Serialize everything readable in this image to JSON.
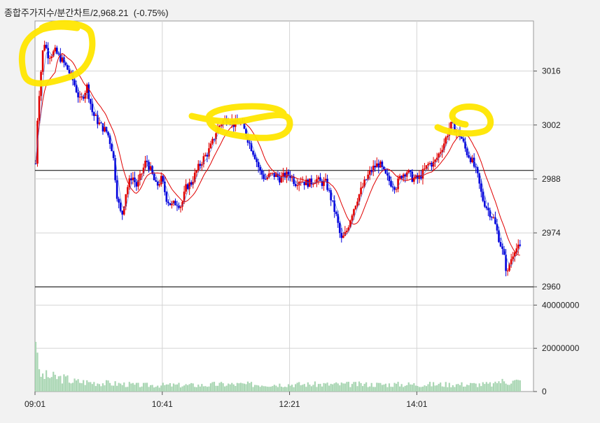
{
  "title": {
    "name": "종합주가지수/분간차트",
    "value": "2,968.21",
    "change": "(-0.75%)"
  },
  "chart_data": [
    {
      "type": "candlestick",
      "name": "price",
      "yticks": [
        3016,
        3002,
        2988,
        2974,
        2960
      ],
      "ylim": [
        2957.5,
        3029
      ],
      "reference_lines": [
        2990.2,
        2960.0
      ],
      "grid": true,
      "xticks": [
        "09:01",
        "10:41",
        "12:21",
        "14:01"
      ],
      "colors": {
        "up": "#e00000",
        "down": "#0000dd",
        "ma": "#e00000"
      },
      "close_path": [
        [
          0,
          2992
        ],
        [
          0.6,
          3006
        ],
        [
          1.5,
          3016
        ],
        [
          2.3,
          3024
        ],
        [
          3.6,
          3020
        ],
        [
          5.5,
          3021
        ],
        [
          7.3,
          3019
        ],
        [
          9.3,
          3016
        ],
        [
          10.8,
          3013
        ],
        [
          12.6,
          3008
        ],
        [
          14.5,
          3012
        ],
        [
          16.1,
          3005
        ],
        [
          18.2,
          3002
        ],
        [
          20.3,
          3000
        ],
        [
          21.8,
          2995
        ],
        [
          23.1,
          2983
        ],
        [
          24.3,
          2978
        ],
        [
          25.6,
          2985
        ],
        [
          27.2,
          2989
        ],
        [
          28.6,
          2986
        ],
        [
          30.2,
          2990
        ],
        [
          31.3,
          2993
        ],
        [
          32.6,
          2990
        ],
        [
          34.1,
          2986
        ],
        [
          35.6,
          2988
        ],
        [
          37.0,
          2983
        ],
        [
          38.4,
          2981
        ],
        [
          39.8,
          2982
        ],
        [
          41.2,
          2981
        ],
        [
          42.6,
          2986
        ],
        [
          44.0,
          2987
        ],
        [
          45.5,
          2990
        ],
        [
          47.2,
          2993
        ],
        [
          48.8,
          2995
        ],
        [
          49.8,
          2997
        ],
        [
          51.3,
          3001
        ],
        [
          52.9,
          3003
        ],
        [
          54.6,
          3004
        ],
        [
          56.2,
          3002
        ],
        [
          57.8,
          3003
        ],
        [
          59.3,
          3000
        ],
        [
          60.6,
          2997
        ],
        [
          62.0,
          2994
        ],
        [
          63.4,
          2990
        ],
        [
          64.9,
          2988
        ],
        [
          66.3,
          2989
        ],
        [
          67.8,
          2989
        ],
        [
          69.2,
          2988
        ],
        [
          70.6,
          2989
        ],
        [
          72.1,
          2989
        ],
        [
          73.4,
          2987
        ],
        [
          74.8,
          2988
        ],
        [
          76.3,
          2987
        ],
        [
          77.7,
          2987
        ],
        [
          79.2,
          2988
        ],
        [
          80.6,
          2987
        ],
        [
          82.1,
          2987
        ],
        [
          83.5,
          2983
        ],
        [
          85.1,
          2978
        ],
        [
          86.4,
          2972
        ],
        [
          87.8,
          2974
        ],
        [
          89.4,
          2979
        ],
        [
          91.0,
          2983
        ],
        [
          92.5,
          2986
        ],
        [
          94.1,
          2989
        ],
        [
          95.6,
          2991
        ],
        [
          97.2,
          2992
        ],
        [
          98.8,
          2989
        ],
        [
          100.4,
          2987
        ],
        [
          101.9,
          2986
        ],
        [
          103.4,
          2989
        ],
        [
          105.0,
          2990
        ],
        [
          106.7,
          2988
        ],
        [
          108.2,
          2988
        ],
        [
          109.8,
          2990
        ],
        [
          111.2,
          2992
        ],
        [
          112.7,
          2992
        ],
        [
          114.3,
          2995
        ],
        [
          115.8,
          2998
        ],
        [
          117.3,
          3002
        ],
        [
          118.7,
          3001
        ],
        [
          120.3,
          2999
        ],
        [
          121.8,
          2995
        ],
        [
          123.3,
          2993
        ],
        [
          124.9,
          2989
        ],
        [
          126.3,
          2983
        ],
        [
          127.9,
          2980
        ],
        [
          129.4,
          2978
        ],
        [
          130.9,
          2973
        ],
        [
          132.4,
          2968
        ],
        [
          133.4,
          2963
        ],
        [
          134.0,
          2966
        ],
        [
          135.5,
          2970
        ],
        [
          137.0,
          2970
        ]
      ]
    },
    {
      "type": "bar",
      "name": "volume",
      "yticks": [
        40000000,
        20000000,
        0
      ],
      "ylim": [
        0,
        44000000
      ],
      "color": "#a9d6b3"
    }
  ]
}
